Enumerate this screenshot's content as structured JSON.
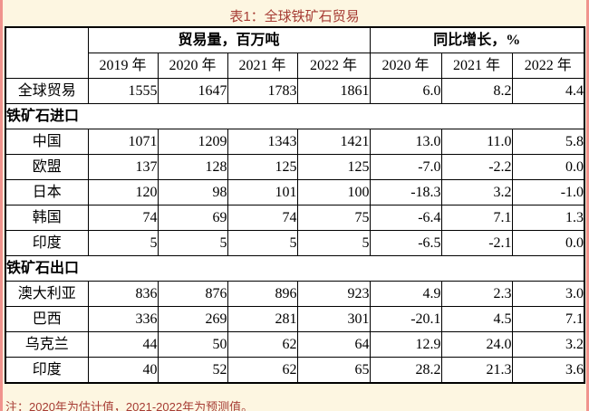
{
  "title": "表1：全球铁矿石贸易",
  "note": "注：2020年为估计值，2021-2022年为预测值。",
  "colors": {
    "page_background": "#fdf6e1",
    "edge_strip": "#f0938d",
    "title_text": "#a63c34",
    "note_text": "#a63c34",
    "table_border": "#000000",
    "cell_background": "#ffffff"
  },
  "table": {
    "group_headers": [
      {
        "label": "贸易量，百万吨",
        "span": 4
      },
      {
        "label": "同比增长，%",
        "span": 3
      }
    ],
    "year_headers": [
      "2019 年",
      "2020 年",
      "2021 年",
      "2022 年",
      "2020 年",
      "2021 年",
      "2022 年"
    ],
    "rows": [
      {
        "type": "data",
        "label": "全球贸易",
        "values": [
          "1555",
          "1647",
          "1783",
          "1861",
          "6.0",
          "8.2",
          "4.4"
        ]
      },
      {
        "type": "section",
        "label": "铁矿石进口"
      },
      {
        "type": "data",
        "label": "中国",
        "values": [
          "1071",
          "1209",
          "1343",
          "1421",
          "13.0",
          "11.0",
          "5.8"
        ]
      },
      {
        "type": "data",
        "label": "欧盟",
        "values": [
          "137",
          "128",
          "125",
          "125",
          "-7.0",
          "-2.2",
          "0.0"
        ]
      },
      {
        "type": "data",
        "label": "日本",
        "values": [
          "120",
          "98",
          "101",
          "100",
          "-18.3",
          "3.2",
          "-1.0"
        ]
      },
      {
        "type": "data",
        "label": "韩国",
        "values": [
          "74",
          "69",
          "74",
          "75",
          "-6.4",
          "7.1",
          "1.3"
        ]
      },
      {
        "type": "data",
        "label": "印度",
        "values": [
          "5",
          "5",
          "5",
          "5",
          "-6.5",
          "-2.1",
          "0.0"
        ]
      },
      {
        "type": "section",
        "label": "铁矿石出口"
      },
      {
        "type": "data",
        "label": "澳大利亚",
        "values": [
          "836",
          "876",
          "896",
          "923",
          "4.9",
          "2.3",
          "3.0"
        ]
      },
      {
        "type": "data",
        "label": "巴西",
        "values": [
          "336",
          "269",
          "281",
          "301",
          "-20.1",
          "4.5",
          "7.1"
        ]
      },
      {
        "type": "data",
        "label": "乌克兰",
        "values": [
          "44",
          "50",
          "62",
          "64",
          "12.9",
          "24.0",
          "3.2"
        ]
      },
      {
        "type": "data",
        "label": "印度",
        "values": [
          "40",
          "52",
          "62",
          "65",
          "28.2",
          "21.3",
          "3.6"
        ]
      }
    ]
  }
}
